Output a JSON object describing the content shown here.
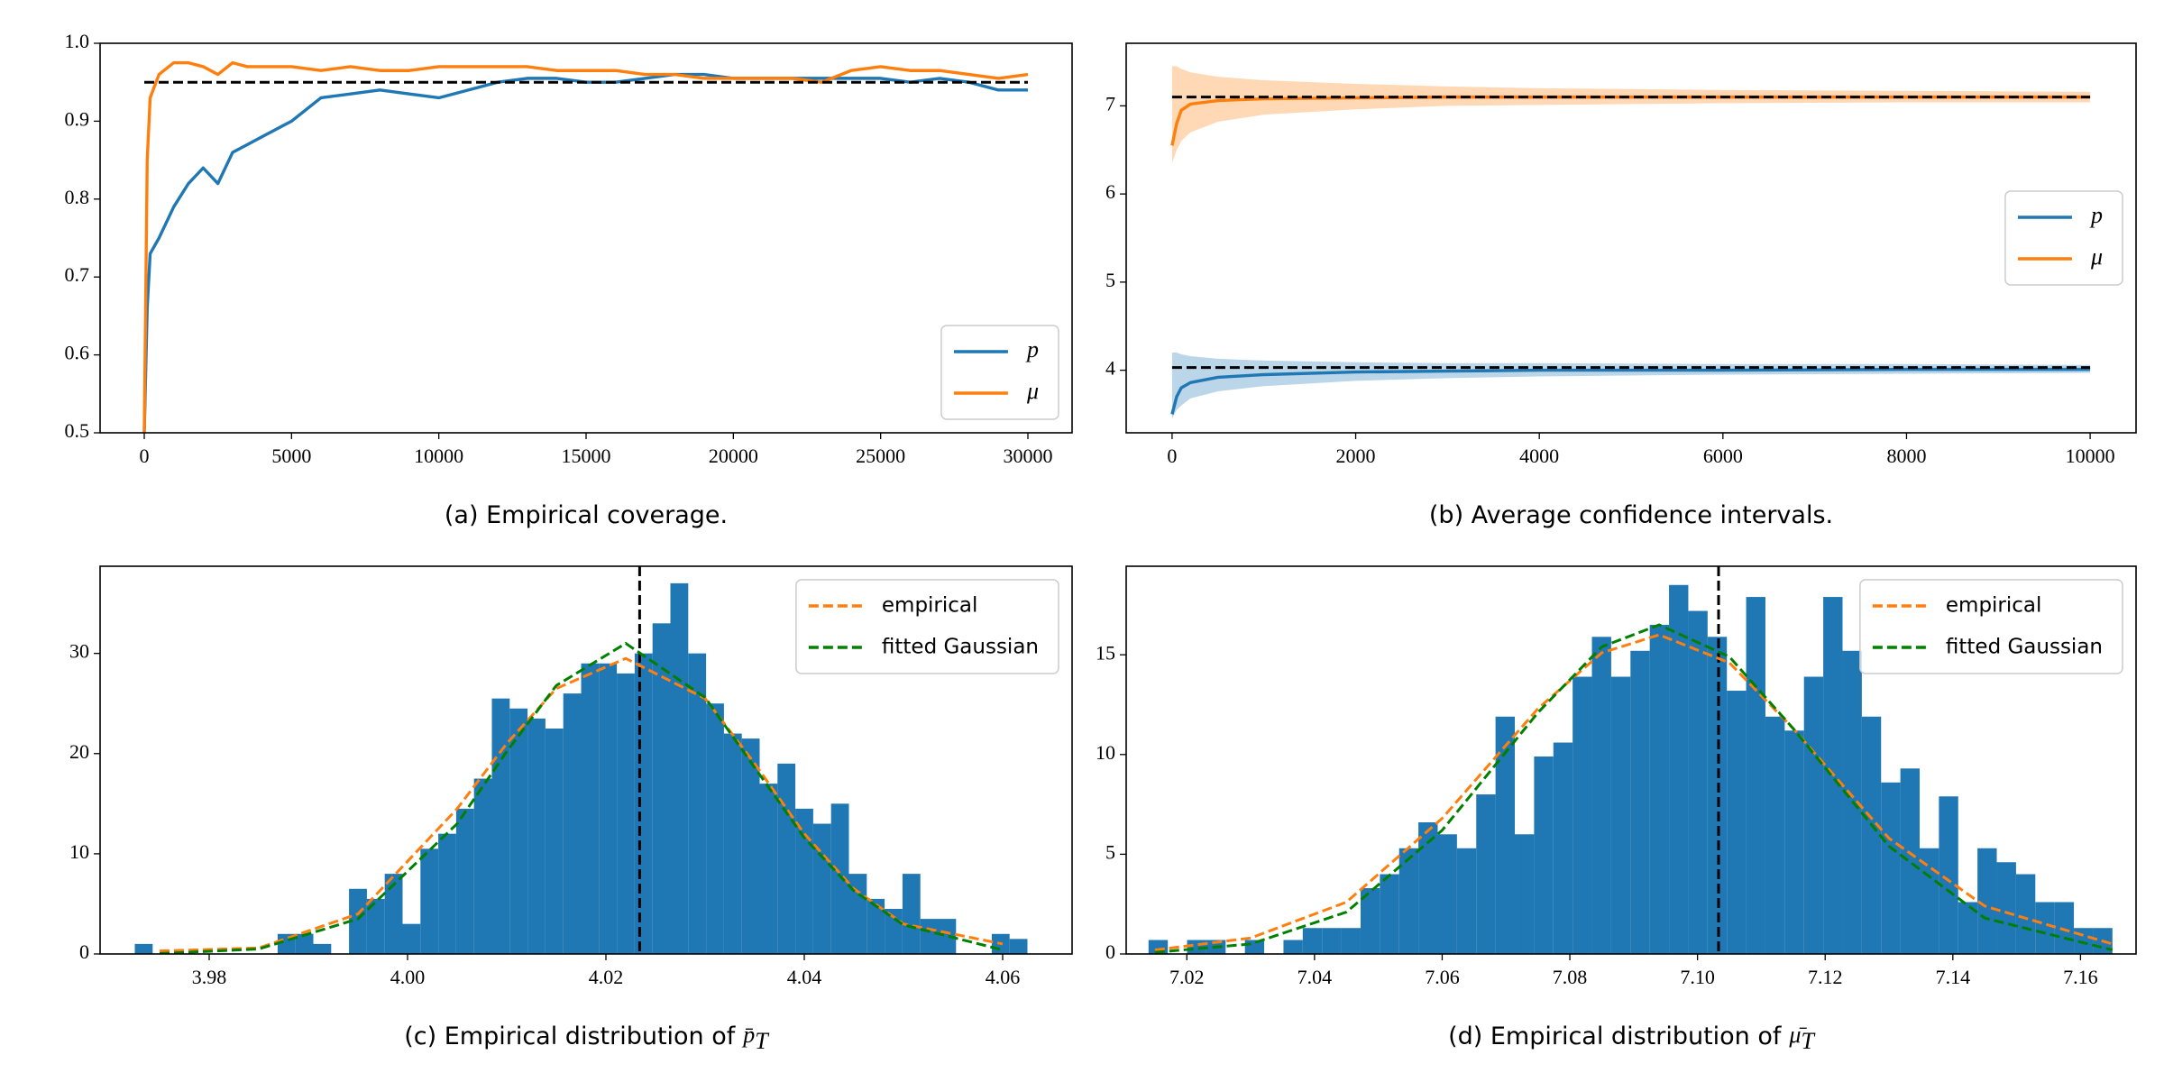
{
  "chart_data": [
    {
      "type": "line",
      "caption": "(a) Empirical coverage.",
      "xlim": [
        -1500,
        31500
      ],
      "xticks": [
        0,
        5000,
        10000,
        15000,
        20000,
        25000,
        30000
      ],
      "ylim": [
        0.5,
        1.0
      ],
      "yticks": [
        0.5,
        0.6,
        0.7,
        0.8,
        0.9,
        {
          "value": 1.0,
          "label": "1.0"
        }
      ],
      "x": [
        0,
        100,
        200,
        500,
        1000,
        1500,
        2000,
        2500,
        3000,
        3500,
        4000,
        5000,
        6000,
        7000,
        8000,
        9000,
        10000,
        11000,
        12000,
        13000,
        14000,
        15000,
        16000,
        17000,
        18000,
        19000,
        20000,
        21000,
        22000,
        23000,
        24000,
        25000,
        26000,
        27000,
        28000,
        29000,
        30000
      ],
      "series": [
        {
          "name": "p",
          "color": "#1f77b4",
          "values": [
            0.5,
            0.66,
            0.73,
            0.75,
            0.79,
            0.82,
            0.84,
            0.82,
            0.86,
            0.87,
            0.88,
            0.9,
            0.93,
            0.935,
            0.94,
            0.935,
            0.93,
            0.94,
            0.95,
            0.955,
            0.955,
            0.95,
            0.95,
            0.955,
            0.96,
            0.96,
            0.955,
            0.955,
            0.955,
            0.955,
            0.955,
            0.955,
            0.95,
            0.955,
            0.95,
            0.94,
            0.94
          ]
        },
        {
          "name": "μ",
          "color": "#ff7f0e",
          "values": [
            0.5,
            0.85,
            0.93,
            0.96,
            0.975,
            0.975,
            0.97,
            0.96,
            0.975,
            0.97,
            0.97,
            0.97,
            0.965,
            0.97,
            0.965,
            0.965,
            0.97,
            0.97,
            0.97,
            0.97,
            0.965,
            0.965,
            0.965,
            0.96,
            0.96,
            0.955,
            0.955,
            0.955,
            0.955,
            0.95,
            0.965,
            0.97,
            0.965,
            0.965,
            0.96,
            0.955,
            0.96
          ]
        }
      ],
      "hlines": [
        0.95
      ],
      "legend": "lower right"
    },
    {
      "type": "line",
      "caption": "(b) Average confidence intervals.",
      "xlim": [
        -500,
        10500
      ],
      "xticks": [
        0,
        2000,
        4000,
        6000,
        8000,
        10000
      ],
      "ylim": [
        3.29,
        7.71
      ],
      "yticks": [
        4,
        5,
        6,
        7
      ],
      "x": [
        0,
        50,
        100,
        200,
        500,
        1000,
        2000,
        3000,
        4000,
        6000,
        8000,
        10000
      ],
      "series": [
        {
          "name": "p",
          "color": "#1f77b4",
          "values": [
            3.5,
            3.7,
            3.8,
            3.86,
            3.92,
            3.95,
            3.98,
            3.99,
            4.0,
            4.0,
            4.01,
            4.01
          ],
          "lower": [
            3.45,
            3.55,
            3.6,
            3.68,
            3.76,
            3.82,
            3.88,
            3.91,
            3.93,
            3.95,
            3.96,
            3.97
          ],
          "upper": [
            4.2,
            4.2,
            4.18,
            4.16,
            4.13,
            4.11,
            4.09,
            4.08,
            4.08,
            4.07,
            4.07,
            4.06
          ]
        },
        {
          "name": "μ",
          "color": "#ff7f0e",
          "values": [
            6.55,
            6.8,
            6.95,
            7.02,
            7.06,
            7.08,
            7.09,
            7.1,
            7.1,
            7.1,
            7.1,
            7.1
          ],
          "lower": [
            6.35,
            6.5,
            6.6,
            6.7,
            6.82,
            6.9,
            6.96,
            7.0,
            7.01,
            7.03,
            7.04,
            7.04
          ],
          "upper": [
            7.45,
            7.45,
            7.42,
            7.38,
            7.33,
            7.29,
            7.25,
            7.22,
            7.2,
            7.18,
            7.17,
            7.16
          ]
        }
      ],
      "hlines": [
        4.03,
        7.1
      ],
      "legend": "center right"
    },
    {
      "type": "histogram",
      "caption": "(c) Empirical distribution of",
      "caption_symbol": "p̄",
      "caption_subscript": "T",
      "xlim": [
        3.969,
        4.067
      ],
      "xticks": [
        3.98,
        {
          "value": 4.0,
          "label": "4.00"
        },
        4.02,
        4.04,
        4.06
      ],
      "ylim": [
        0,
        38.7
      ],
      "yticks": [
        0,
        10,
        20,
        30
      ],
      "color": "#1f77b4",
      "bins": [
        3.9725,
        3.9743,
        3.9761,
        3.9779,
        3.9797,
        3.9815,
        3.9833,
        3.9851,
        3.9869,
        3.9887,
        3.9905,
        3.9923,
        3.9941,
        3.9959,
        3.9977,
        3.9995,
        4.0013,
        4.0031,
        4.0049,
        4.0067,
        4.0085,
        4.0103,
        4.0121,
        4.0139,
        4.0157,
        4.0175,
        4.0193,
        4.0211,
        4.0229,
        4.0247,
        4.0265,
        4.0283,
        4.0301,
        4.0319,
        4.0337,
        4.0355,
        4.0373,
        4.0391,
        4.0409,
        4.0427,
        4.0445,
        4.0463,
        4.0481,
        4.0499,
        4.0517,
        4.0535,
        4.0553,
        4.0571,
        4.0589,
        4.0607,
        4.0625
      ],
      "counts": [
        1,
        0,
        0,
        0,
        0,
        0,
        0,
        0,
        2,
        2,
        1,
        0,
        6.5,
        5.5,
        8,
        3,
        10.5,
        12,
        14.5,
        17.5,
        25.5,
        24.5,
        23.5,
        22.5,
        26,
        29,
        29,
        28,
        30,
        33,
        37,
        30,
        25,
        22,
        21.5,
        17,
        19,
        14.5,
        13,
        15,
        8,
        5.5,
        4.5,
        8,
        3.5,
        3.5,
        0,
        0,
        2,
        1.5
      ],
      "curve_x": [
        3.975,
        3.985,
        3.995,
        4.005,
        4.01,
        4.015,
        4.022,
        4.03,
        4.035,
        4.04,
        4.045,
        4.05,
        4.06
      ],
      "curves": [
        {
          "name": "empirical",
          "color": "#ff7f0e",
          "values": [
            0.3,
            0.6,
            4,
            14.5,
            21,
            26.5,
            29.5,
            25.5,
            19,
            12,
            6.5,
            3,
            1.0
          ]
        },
        {
          "name": "fitted Gaussian",
          "color": "#008000",
          "values": [
            0.04,
            0.5,
            3.5,
            13,
            20.2,
            26.8,
            31,
            25.6,
            18.6,
            11.6,
            6.3,
            2.9,
            0.4
          ]
        }
      ],
      "vlines": [
        4.0234
      ],
      "legend": "upper right"
    },
    {
      "type": "histogram",
      "caption": "(d) Empirical distribution of",
      "caption_symbol": "μ̄",
      "caption_subscript": "T",
      "xlim": [
        7.0105,
        7.1687
      ],
      "xticks": [
        7.02,
        7.04,
        7.06,
        7.08,
        {
          "value": 7.1,
          "label": "7.10"
        },
        7.12,
        7.14,
        7.16
      ],
      "ylim": [
        0,
        19.44
      ],
      "yticks": [
        0,
        5,
        10,
        15
      ],
      "color": "#1f77b4",
      "bins": [
        7.014,
        7.01702,
        7.02004,
        7.02306,
        7.02608,
        7.0291,
        7.03212,
        7.03514,
        7.03816,
        7.04118,
        7.0442,
        7.04722,
        7.05024,
        7.05326,
        7.05628,
        7.0593,
        7.06232,
        7.06534,
        7.06836,
        7.07138,
        7.0744,
        7.07742,
        7.08044,
        7.08346,
        7.08648,
        7.0895,
        7.09252,
        7.09554,
        7.09856,
        7.10158,
        7.1046,
        7.10762,
        7.11064,
        7.11366,
        7.11668,
        7.1197,
        7.12272,
        7.12574,
        7.12876,
        7.13178,
        7.1348,
        7.13782,
        7.14084,
        7.14386,
        7.14688,
        7.1499,
        7.15292,
        7.15594,
        7.15896,
        7.16198,
        7.165
      ],
      "counts": [
        0.7,
        0,
        0.7,
        0.7,
        0,
        0.7,
        0,
        0.7,
        1.3,
        1.3,
        1.3,
        3.3,
        4,
        5.3,
        6.6,
        6,
        5.3,
        8,
        11.9,
        6,
        9.9,
        10.6,
        13.9,
        15.9,
        13.9,
        15.2,
        16.5,
        18.5,
        17.2,
        15.9,
        13.2,
        17.9,
        11.9,
        11.2,
        13.9,
        17.9,
        15.2,
        11.9,
        8.6,
        9.3,
        5.3,
        7.9,
        2.6,
        5.3,
        4.6,
        4,
        2.6,
        2.6,
        1.3,
        1.3
      ],
      "curve_x": [
        7.015,
        7.03,
        7.045,
        7.06,
        7.075,
        7.085,
        7.094,
        7.105,
        7.115,
        7.13,
        7.145,
        7.165
      ],
      "curves": [
        {
          "name": "empirical",
          "color": "#ff7f0e",
          "values": [
            0.2,
            0.8,
            2.6,
            6.8,
            12.3,
            15.1,
            16,
            14.6,
            11.3,
            5.8,
            2.4,
            0.5
          ]
        },
        {
          "name": "fitted Gaussian",
          "color": "#008000",
          "values": [
            0.08,
            0.5,
            2.1,
            6.2,
            12.1,
            15.4,
            16.5,
            14.9,
            11.3,
            5.4,
            1.8,
            0.2
          ]
        }
      ],
      "vlines": [
        7.1033
      ],
      "legend": "upper right"
    }
  ]
}
